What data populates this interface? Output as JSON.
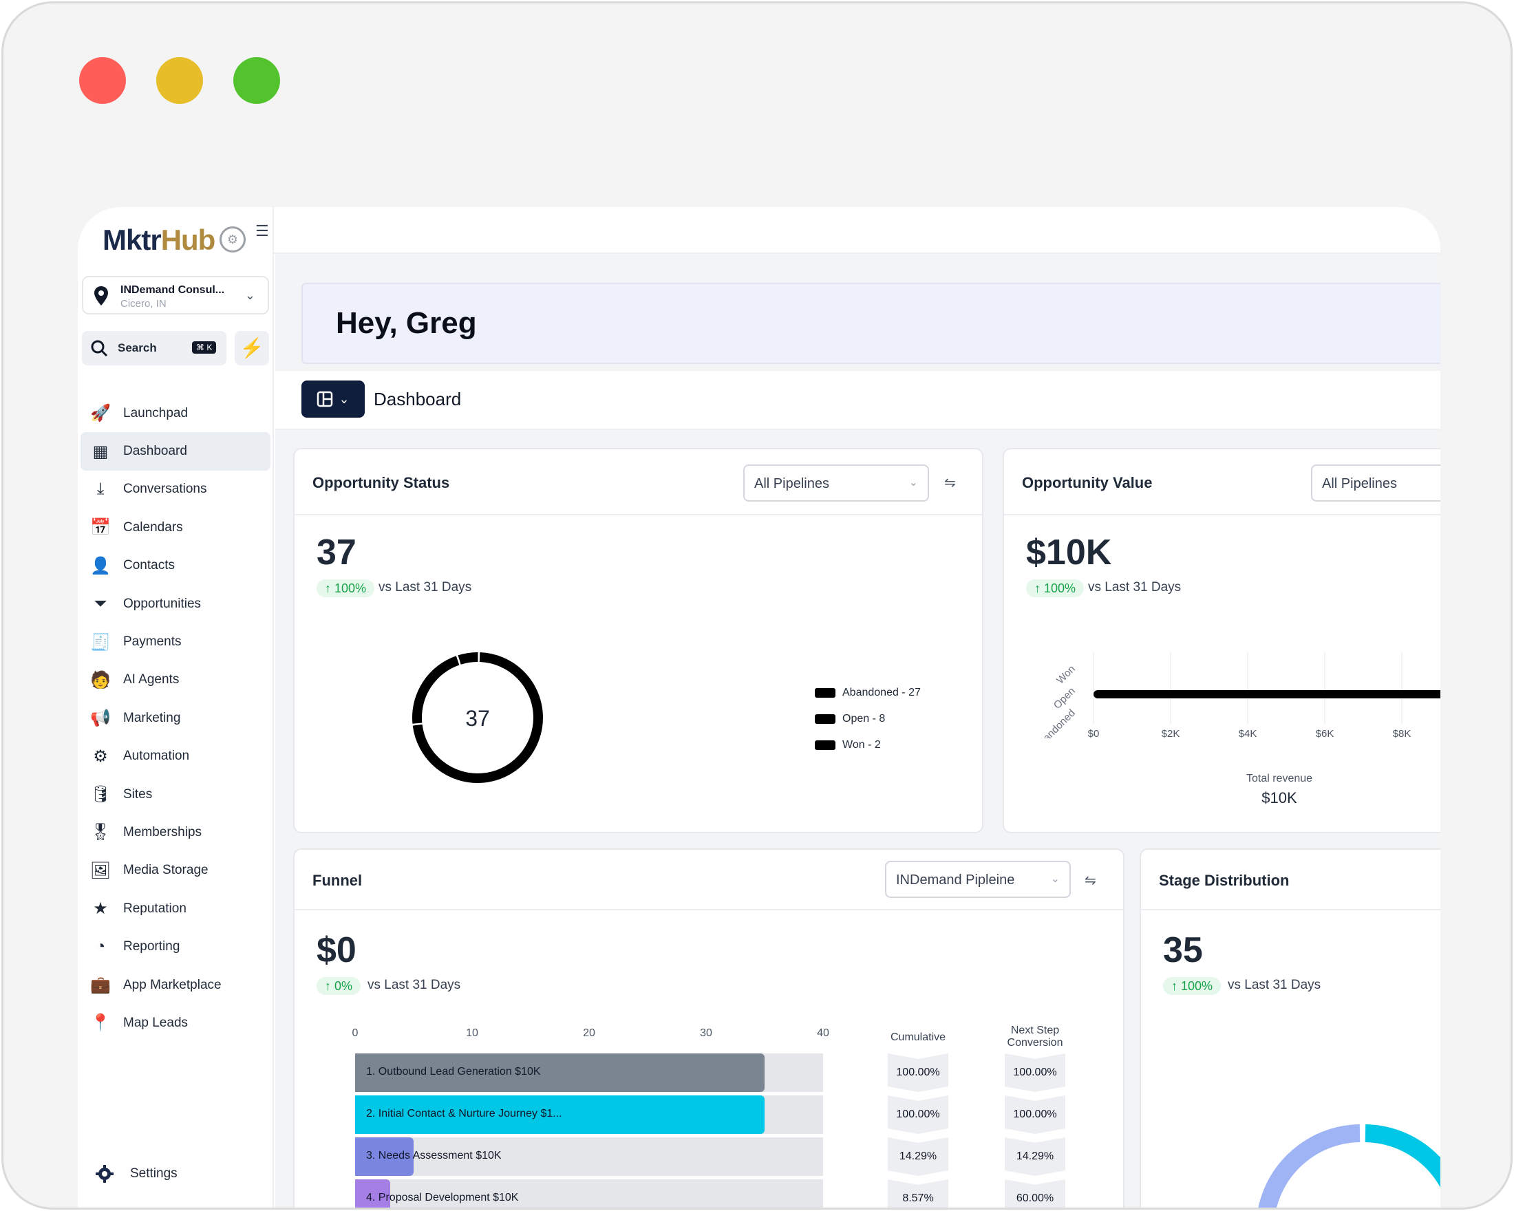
{
  "window": {
    "controls": {
      "close": "#fe5e57",
      "minimize": "#e7be2a",
      "maximize": "#52c22d"
    }
  },
  "brand": {
    "name_a": "Mktr",
    "name_b": "Hub",
    "accent": "#b08a3e"
  },
  "location": {
    "name": "INDemand Consul...",
    "city": "Cicero, IN"
  },
  "search": {
    "label": "Search",
    "shortcut": "⌘ K"
  },
  "nav": [
    {
      "label": "Launchpad",
      "icon": "rocket-icon",
      "glyph": "🚀"
    },
    {
      "label": "Dashboard",
      "icon": "dashboard-icon",
      "glyph": "▦",
      "active": true
    },
    {
      "label": "Conversations",
      "icon": "inbox-download-icon",
      "glyph": "⤓"
    },
    {
      "label": "Calendars",
      "icon": "calendar-icon",
      "glyph": "📅"
    },
    {
      "label": "Contacts",
      "icon": "person-icon",
      "glyph": "👤"
    },
    {
      "label": "Opportunities",
      "icon": "funnel-icon",
      "glyph": "⏷"
    },
    {
      "label": "Payments",
      "icon": "receipt-icon",
      "glyph": "🧾"
    },
    {
      "label": "AI Agents",
      "icon": "agent-icon",
      "glyph": "🧑"
    },
    {
      "label": "Marketing",
      "icon": "megaphone-icon",
      "glyph": "📢"
    },
    {
      "label": "Automation",
      "icon": "workflow-icon",
      "glyph": "⚙"
    },
    {
      "label": "Sites",
      "icon": "database-icon",
      "glyph": "🛢"
    },
    {
      "label": "Memberships",
      "icon": "award-icon",
      "glyph": "🎖"
    },
    {
      "label": "Media Storage",
      "icon": "image-icon",
      "glyph": "🖼"
    },
    {
      "label": "Reputation",
      "icon": "star-icon",
      "glyph": "★"
    },
    {
      "label": "Reporting",
      "icon": "pie-chart-icon",
      "glyph": "◔"
    },
    {
      "label": "App Marketplace",
      "icon": "briefcase-icon",
      "glyph": "💼"
    },
    {
      "label": "Map Leads",
      "icon": "map-pin-icon",
      "glyph": "📍"
    }
  ],
  "settings": {
    "label": "Settings"
  },
  "greeting": "Hey, Greg",
  "dashboard": {
    "title": "Dashboard"
  },
  "opportunity_status": {
    "title": "Opportunity Status",
    "filter": "All Pipelines",
    "value": "37",
    "change": "↑ 100%",
    "compare": "vs Last 31 Days",
    "center": "37",
    "legend": [
      "Abandoned - 27",
      "Open - 8",
      "Won - 2"
    ]
  },
  "opportunity_value": {
    "title": "Opportunity Value",
    "filter": "All Pipelines",
    "value": "$10K",
    "change": "↑ 100%",
    "compare": "vs Last 31 Days",
    "total_label": "Total revenue",
    "total_value": "$10K"
  },
  "funnel": {
    "title": "Funnel",
    "filter": "INDemand Pipleine",
    "value": "$0",
    "change": "↑ 0%",
    "compare": "vs Last 31 Days",
    "col_cumulative": "Cumulative",
    "col_next_1": "Next Step",
    "col_next_2": "Conversion",
    "stages": [
      {
        "label": "1. Outbound Lead Generation   $10K",
        "count": 35,
        "color": "#7b8491",
        "cumulative": "100.00%",
        "next": "100.00%"
      },
      {
        "label": "2. Initial Contact & Nurture Journey   $1...",
        "count": 35,
        "color": "#00c7e6",
        "cumulative": "100.00%",
        "next": "100.00%"
      },
      {
        "label": "3. Needs Assessment   $10K",
        "count": 5,
        "color": "#7b86e0",
        "cumulative": "14.29%",
        "next": "14.29%"
      },
      {
        "label": "4. Proposal Development   $10K",
        "count": 3,
        "color": "#a57ee6",
        "cumulative": "8.57%",
        "next": "60.00%"
      }
    ]
  },
  "stage_distribution": {
    "title": "Stage Distribution",
    "value": "35",
    "change": "↑ 100%",
    "compare": "vs Last 31 Days",
    "center": "35"
  },
  "chart_data": [
    {
      "type": "pie",
      "title": "",
      "categories": [
        "Abandoned",
        "Open",
        "Won"
      ],
      "values": [
        27,
        8,
        2
      ],
      "center_label": "37",
      "legend": "right"
    },
    {
      "type": "bar",
      "orientation": "horizontal",
      "title": "",
      "categories": [
        "Won",
        "Open",
        "Abandoned"
      ],
      "ticks": [
        "$0",
        "$2K",
        "$4K",
        "$6K",
        "$8K"
      ],
      "values": [
        0,
        0,
        10000
      ],
      "xlabel": "Total revenue",
      "xlim": [
        0,
        10000
      ]
    },
    {
      "type": "bar",
      "orientation": "horizontal",
      "title": "",
      "categories": [
        "1. Outbound Lead Generation",
        "2. Initial Contact & Nurture Journey",
        "3. Needs Assessment",
        "4. Proposal Development"
      ],
      "values": [
        35,
        35,
        5,
        3
      ],
      "ticks": [
        "0",
        "10",
        "20",
        "30",
        "40"
      ],
      "xlim": [
        0,
        40
      ]
    }
  ]
}
